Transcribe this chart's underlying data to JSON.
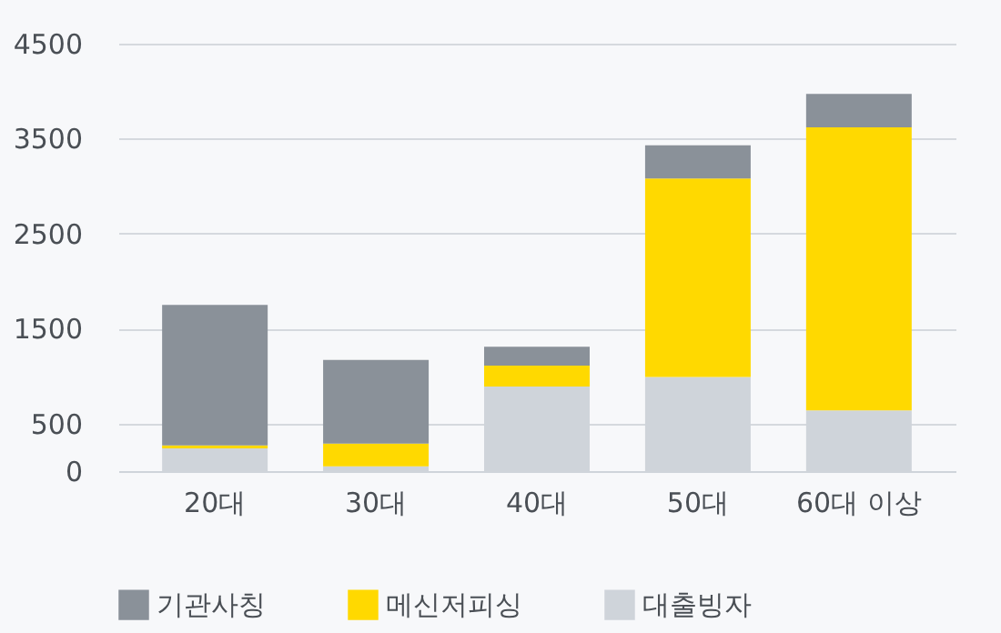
{
  "chart_data": {
    "type": "bar",
    "stacked": true,
    "categories": [
      "20대",
      "30대",
      "40대",
      "50대",
      "60대 이상"
    ],
    "series": [
      {
        "name": "대출빙자",
        "color": "#cfd4da",
        "values": [
          240,
          50,
          890,
          990,
          640
        ]
      },
      {
        "name": "메신저피싱",
        "color": "#ffd900",
        "values": [
          30,
          240,
          220,
          2090,
          2980
        ]
      },
      {
        "name": "기관사칭",
        "color": "#8a9199",
        "values": [
          1480,
          880,
          200,
          350,
          350
        ]
      }
    ],
    "ylim": [
      0,
      4500
    ],
    "yticks": [
      0,
      500,
      1500,
      2500,
      3500,
      4500
    ],
    "grid": "y",
    "legend": "bottom left"
  }
}
